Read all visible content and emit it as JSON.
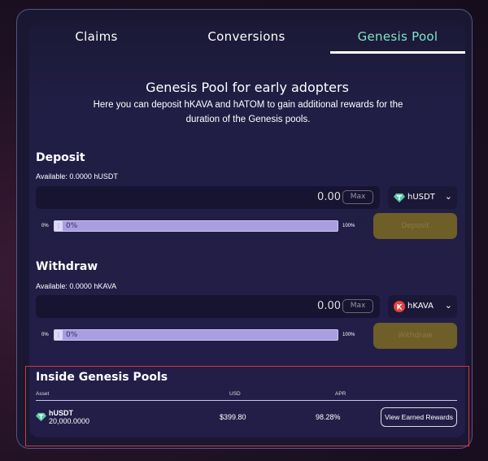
{
  "tabs": [
    {
      "label": "Claims"
    },
    {
      "label": "Conversions"
    },
    {
      "label": "Genesis Pool",
      "active": true
    }
  ],
  "header": {
    "title": "Genesis Pool for early adopters",
    "subtitle": "Here you can deposit hKAVA and hATOM to gain additional rewards for the duration of the Genesis pools."
  },
  "deposit": {
    "title": "Deposit",
    "available": "Available: 0.0000 hUSDT",
    "value": "0.00",
    "max_label": "Max",
    "token": "hUSDT",
    "token_icon": "tether-gem-icon",
    "min_label": "0%",
    "max_pct_label": "100%",
    "slider_value": "0%",
    "button": "Deposit"
  },
  "withdraw": {
    "title": "Withdraw",
    "available": "Available: 0.0000 hKAVA",
    "value": "0.00",
    "max_label": "Max",
    "token": "hKAVA",
    "token_icon": "kava-icon",
    "min_label": "0%",
    "max_pct_label": "100%",
    "slider_value": "0%",
    "button": "Withdraw"
  },
  "pools": {
    "title": "Inside Genesis Pools",
    "columns": [
      "Asset",
      "USD",
      "APR"
    ],
    "rows": [
      {
        "asset": "hUSDT",
        "amount": "20,000.0000",
        "usd": "$399.80",
        "apr": "98.28%",
        "action": "View Earned Rewards"
      }
    ]
  },
  "colors": {
    "accent": "#7ee6c8",
    "button": "#6e5e28",
    "slider": "#a89ee0",
    "highlight": "#dd3333"
  }
}
